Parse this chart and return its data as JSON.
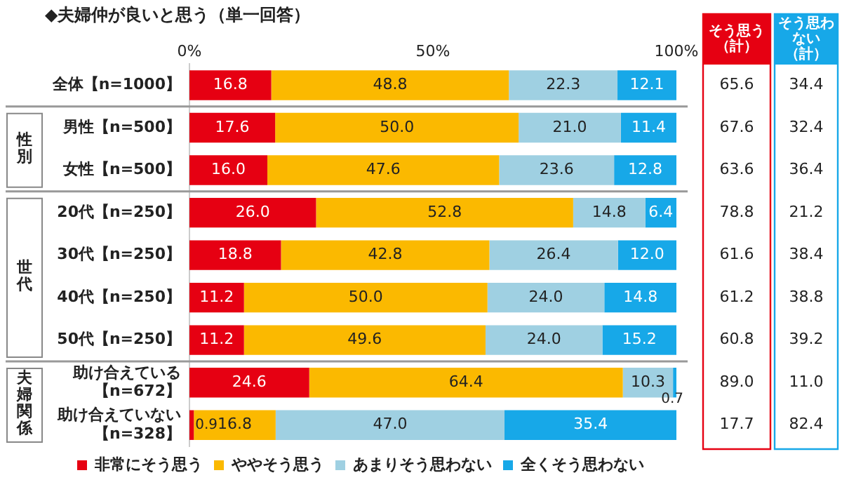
{
  "chart_data": {
    "type": "bar",
    "orientation": "horizontal",
    "stacked": true,
    "title": "◆夫婦仲が良いと思う（単一回答）",
    "categories": [
      "全体【n=1000】",
      "男性【n=500】",
      "女性【n=500】",
      "20代【n=250】",
      "30代【n=250】",
      "40代【n=250】",
      "50代【n=250】",
      "助け合えている【n=672】",
      "助け合えていない【n=328】"
    ],
    "series": [
      {
        "name": "非常にそう思う",
        "color": "#e60012",
        "values": [
          16.8,
          17.6,
          16.0,
          26.0,
          18.8,
          11.2,
          11.2,
          24.6,
          0.9
        ],
        "value_labels": [
          "16.8",
          "17.6",
          "16.0",
          "26.0",
          "18.8",
          "11.2",
          "11.2",
          "24.6",
          "0.9"
        ]
      },
      {
        "name": "ややそう思う",
        "color": "#fbb900",
        "values": [
          48.8,
          50.0,
          47.6,
          52.8,
          42.8,
          50.0,
          49.6,
          64.4,
          16.8
        ],
        "value_labels": [
          "48.8",
          "50.0",
          "47.6",
          "52.8",
          "42.8",
          "50.0",
          "49.6",
          "64.4",
          "16.8"
        ]
      },
      {
        "name": "あまりそう思わない",
        "color": "#9fd0e2",
        "values": [
          22.3,
          21.0,
          23.6,
          14.8,
          26.4,
          24.0,
          24.0,
          10.3,
          47.0
        ],
        "value_labels": [
          "22.3",
          "21.0",
          "23.6",
          "14.8",
          "26.4",
          "24.0",
          "24.0",
          "10.3",
          "47.0"
        ]
      },
      {
        "name": "全くそう思わない",
        "color": "#17a8e8",
        "values": [
          12.1,
          11.4,
          12.8,
          6.4,
          12.0,
          14.8,
          15.2,
          0.7,
          35.4
        ],
        "value_labels": [
          "12.1",
          "11.4",
          "12.8",
          "6.4",
          "12.0",
          "14.8",
          "15.2",
          "0.7",
          "35.4"
        ]
      }
    ],
    "xlim": [
      0,
      100
    ],
    "xticks": [
      {
        "value": 0,
        "label": "0%"
      },
      {
        "value": 50,
        "label": "50%"
      },
      {
        "value": 100,
        "label": "100%"
      }
    ],
    "legend": "bottom",
    "annotations": [
      "そう思う（計）",
      "そう思わない（計）",
      "65.6",
      "67.6",
      "63.6",
      "78.8",
      "61.6",
      "61.2",
      "60.8",
      "89.0",
      "17.7",
      "34.4",
      "32.4",
      "36.4",
      "21.2",
      "38.4",
      "38.8",
      "39.2",
      "11.0",
      "82.4",
      "性別",
      "世代",
      "夫婦関係"
    ]
  }
}
